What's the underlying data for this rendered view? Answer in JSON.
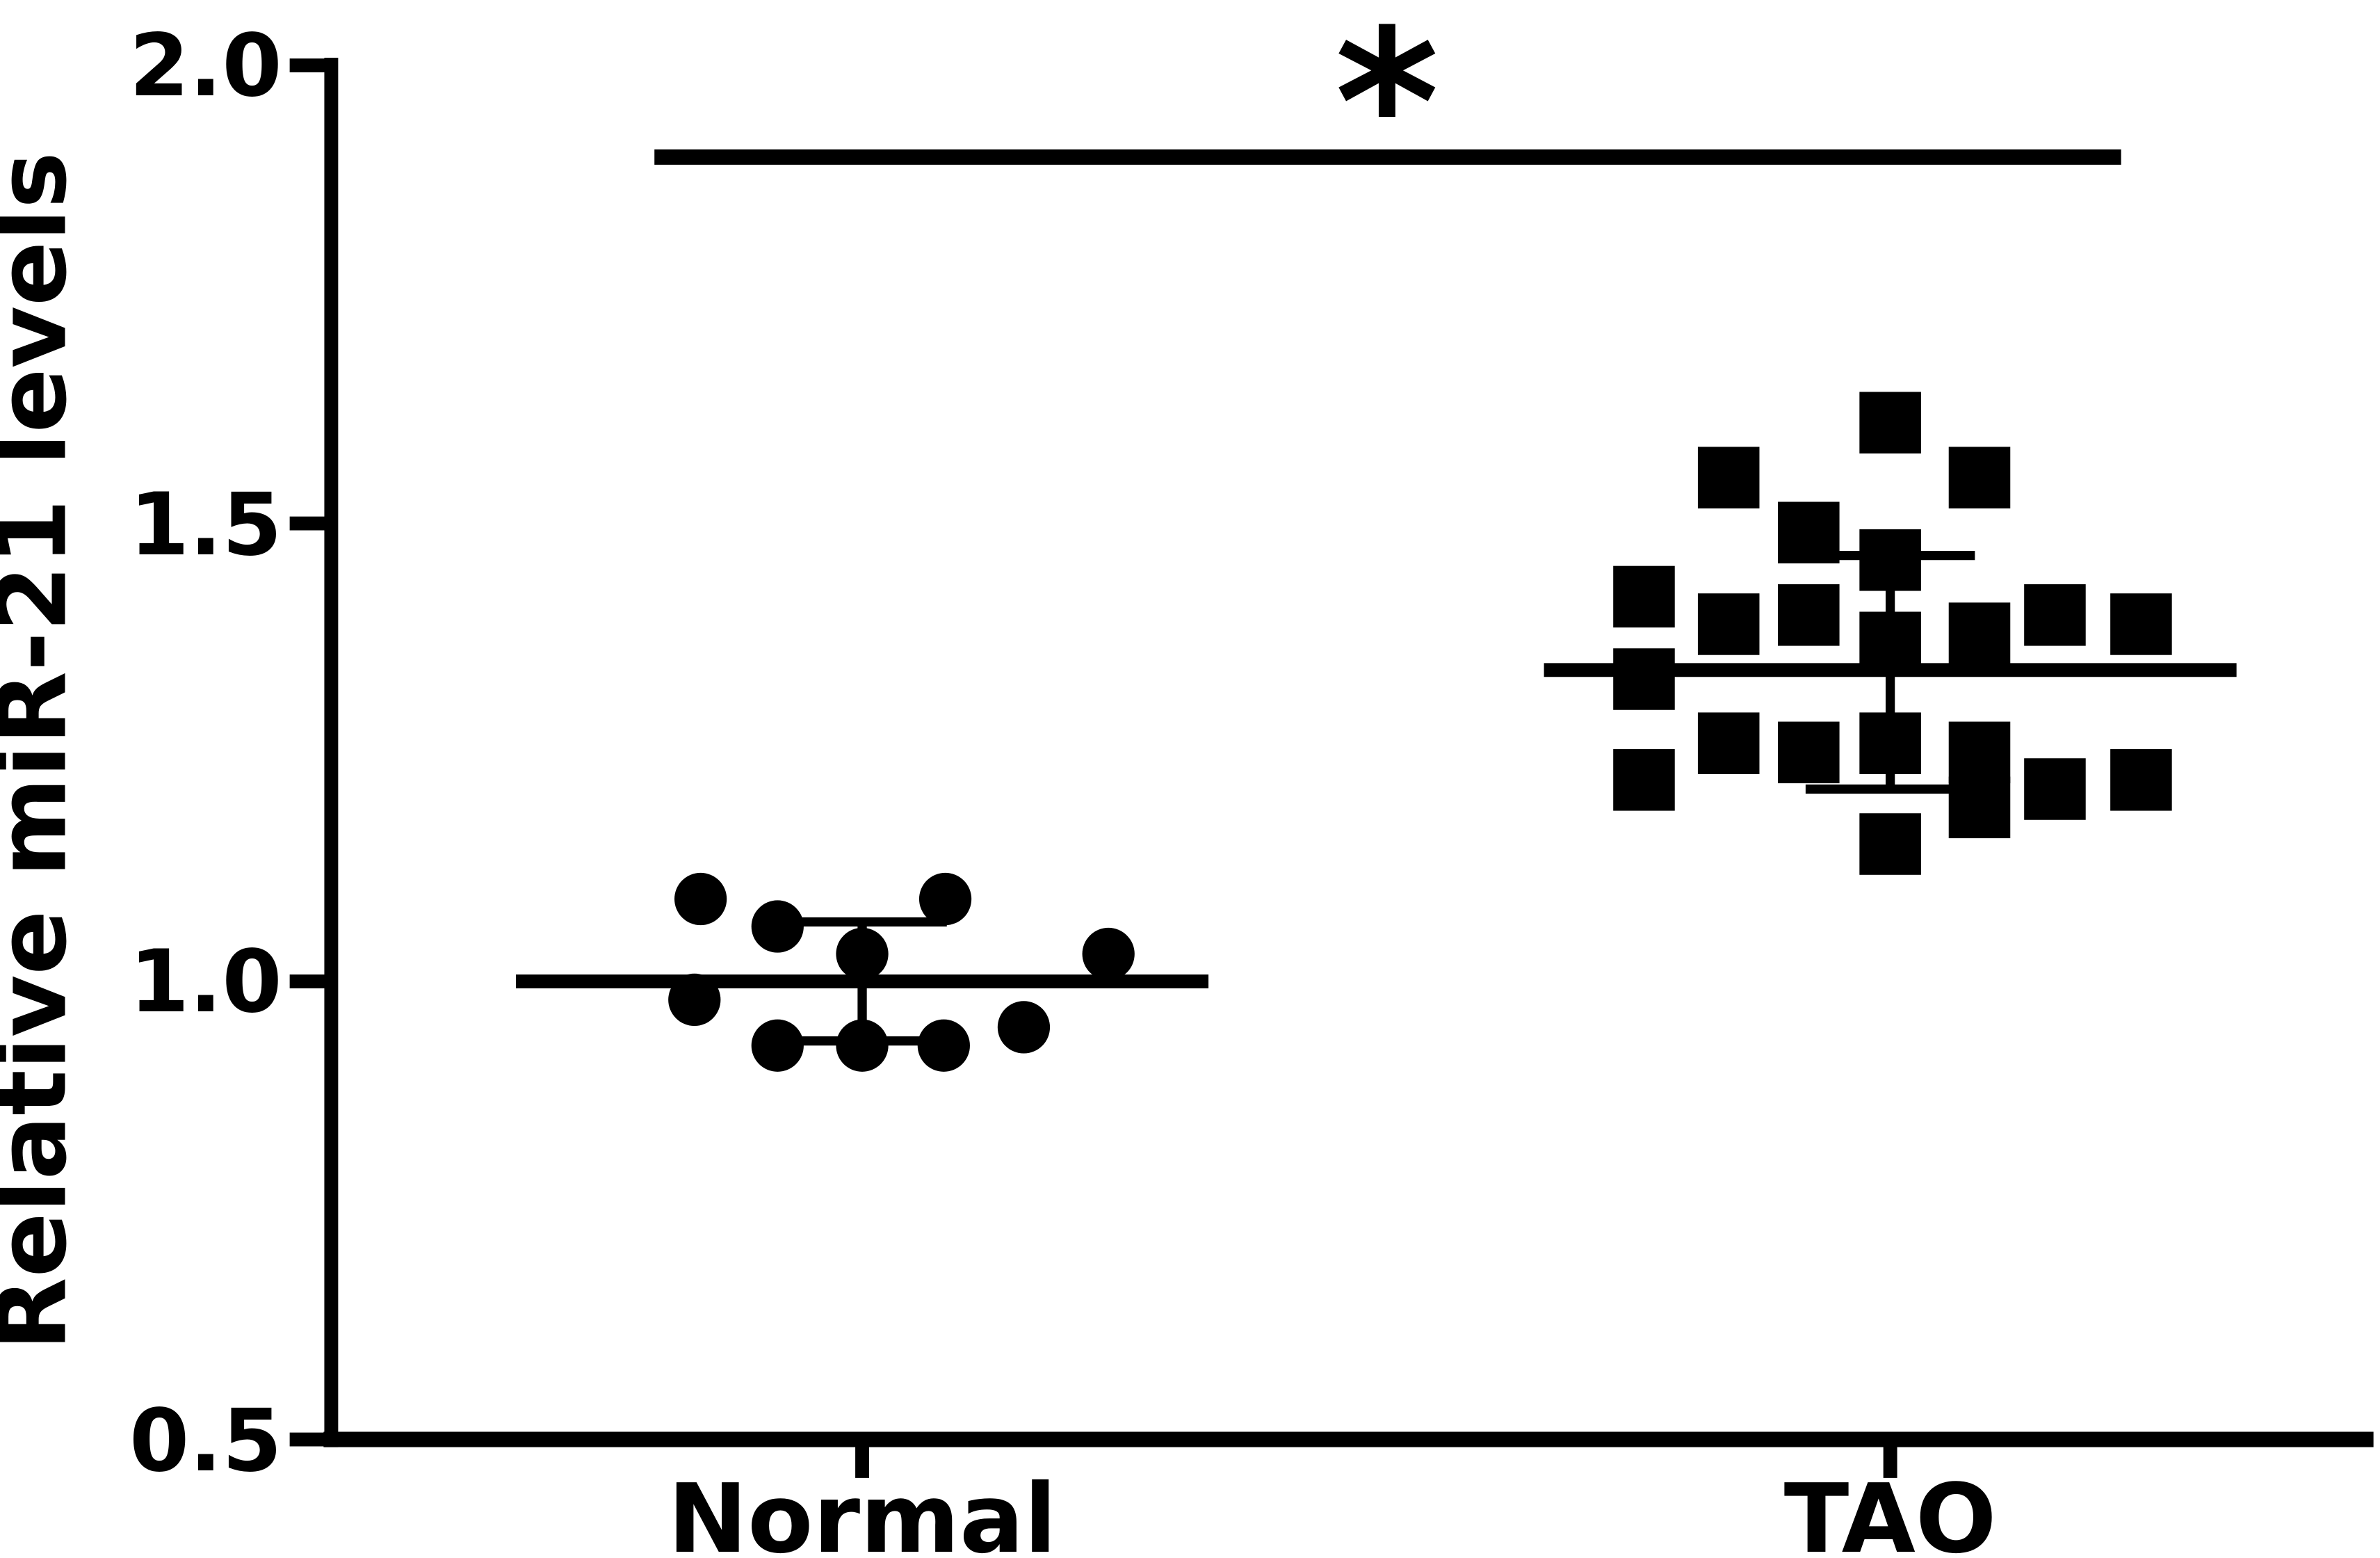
{
  "chart_data": {
    "type": "scatter",
    "title": "",
    "xlabel": "",
    "ylabel": "Relative miR-21 levels",
    "ylim": [
      0.5,
      2.0
    ],
    "ytick_values": [
      0.5,
      1.0,
      1.5,
      2.0
    ],
    "ytick_labels": [
      "0.5",
      "1.0",
      "1.5",
      "2.0"
    ],
    "categories": [
      "Normal",
      "TAO"
    ],
    "grid": false,
    "legend": false,
    "marker_color": "#000000",
    "groups": [
      {
        "name": "Normal",
        "marker": "circle",
        "mean": 1.0,
        "error_high": 1.065,
        "error_low": 0.935,
        "points": [
          {
            "dx": -105,
            "y": 1.09
          },
          {
            "dx": -55,
            "y": 1.06
          },
          {
            "dx": 0,
            "y": 1.03
          },
          {
            "dx": 54,
            "y": 1.09
          },
          {
            "dx": -109,
            "y": 0.98
          },
          {
            "dx": -55,
            "y": 0.93
          },
          {
            "dx": 0,
            "y": 0.93
          },
          {
            "dx": 53,
            "y": 0.93
          },
          {
            "dx": 105,
            "y": 0.95
          },
          {
            "dx": 160,
            "y": 1.03
          }
        ]
      },
      {
        "name": "TAO",
        "marker": "square",
        "mean": 1.34,
        "error_high": 1.465,
        "error_low": 1.21,
        "points": [
          {
            "dx": 0,
            "y": 1.61
          },
          {
            "dx": -105,
            "y": 1.55
          },
          {
            "dx": 58,
            "y": 1.55
          },
          {
            "dx": -53,
            "y": 1.49
          },
          {
            "dx": 0,
            "y": 1.46
          },
          {
            "dx": -160,
            "y": 1.42
          },
          {
            "dx": -105,
            "y": 1.39
          },
          {
            "dx": -53,
            "y": 1.4
          },
          {
            "dx": 0,
            "y": 1.37
          },
          {
            "dx": 58,
            "y": 1.38
          },
          {
            "dx": 107,
            "y": 1.4
          },
          {
            "dx": 163,
            "y": 1.39
          },
          {
            "dx": -160,
            "y": 1.33
          },
          {
            "dx": -105,
            "y": 1.26
          },
          {
            "dx": -53,
            "y": 1.25
          },
          {
            "dx": 0,
            "y": 1.26
          },
          {
            "dx": 58,
            "y": 1.25
          },
          {
            "dx": 107,
            "y": 1.21
          },
          {
            "dx": 163,
            "y": 1.22
          },
          {
            "dx": -160,
            "y": 1.22
          },
          {
            "dx": 0,
            "y": 1.15
          },
          {
            "dx": 58,
            "y": 1.19
          }
        ]
      }
    ],
    "significance": {
      "label": "*",
      "y": 1.9,
      "between": [
        "Normal",
        "TAO"
      ]
    }
  },
  "colors": {
    "foreground": "#000000",
    "background": "#ffffff"
  }
}
